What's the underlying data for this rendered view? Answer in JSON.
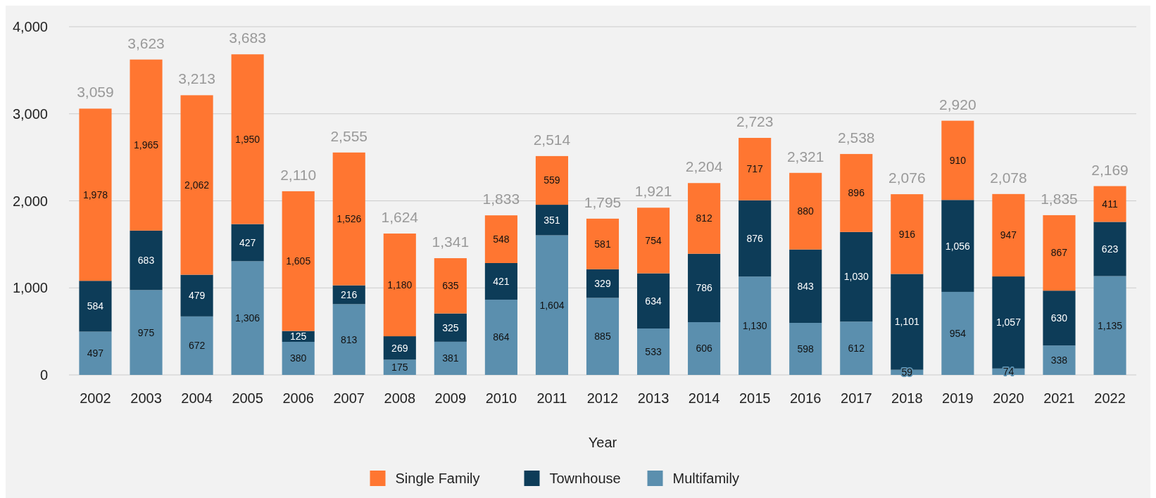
{
  "chart_data": {
    "type": "bar",
    "stacked": true,
    "xlabel": "Year",
    "categories": [
      "2002",
      "2003",
      "2004",
      "2005",
      "2006",
      "2007",
      "2008",
      "2009",
      "2010",
      "2011",
      "2012",
      "2013",
      "2014",
      "2015",
      "2016",
      "2017",
      "2018",
      "2019",
      "2020",
      "2021",
      "2022"
    ],
    "series": [
      {
        "name": "Multifamily",
        "color": "#5b8fae",
        "values": [
          497,
          975,
          672,
          1306,
          380,
          813,
          175,
          381,
          864,
          1604,
          885,
          533,
          606,
          1130,
          598,
          612,
          59,
          954,
          74,
          338,
          1135
        ],
        "value_labels": [
          "497",
          "975",
          "672",
          "1,306",
          "380",
          "813",
          "175",
          "381",
          "864",
          "1,604",
          "885",
          "533",
          "606",
          "1,130",
          "598",
          "612",
          "59",
          "954",
          "74",
          "338",
          "1,135"
        ]
      },
      {
        "name": "Townhouse",
        "color": "#0d3c58",
        "values": [
          584,
          683,
          479,
          427,
          125,
          216,
          269,
          325,
          421,
          351,
          329,
          634,
          786,
          876,
          843,
          1030,
          1101,
          1056,
          1057,
          630,
          623
        ],
        "value_labels": [
          "584",
          "683",
          "479",
          "427",
          "125",
          "216",
          "269",
          "325",
          "421",
          "351",
          "329",
          "634",
          "786",
          "876",
          "843",
          "1,030",
          "1,101",
          "1,056",
          "1,057",
          "630",
          "623"
        ]
      },
      {
        "name": "Single Family",
        "color": "#ff7631",
        "values": [
          1978,
          1965,
          2062,
          1950,
          1605,
          1526,
          1180,
          635,
          548,
          559,
          581,
          754,
          812,
          717,
          880,
          896,
          916,
          910,
          947,
          867,
          411
        ],
        "value_labels": [
          "1,978",
          "1,965",
          "2,062",
          "1,950",
          "1,605",
          "1,526",
          "1,180",
          "635",
          "548",
          "559",
          "581",
          "754",
          "812",
          "717",
          "880",
          "896",
          "916",
          "910",
          "947",
          "867",
          "411"
        ]
      }
    ],
    "totals": [
      "3,059",
      "3,623",
      "3,213",
      "3,683",
      "2,110",
      "2,555",
      "1,624",
      "1,341",
      "1,833",
      "2,514",
      "1,795",
      "1,921",
      "2,204",
      "2,723",
      "2,321",
      "2,538",
      "2,076",
      "2,920",
      "2,078",
      "1,835",
      "2,169"
    ],
    "ylim": [
      0,
      4000
    ],
    "yticks": [
      {
        "value": 0,
        "label": "0"
      },
      {
        "value": 1000,
        "label": "1,000"
      },
      {
        "value": 2000,
        "label": "2,000"
      },
      {
        "value": 3000,
        "label": "3,000"
      },
      {
        "value": 4000,
        "label": "4,000"
      }
    ],
    "grid": "y",
    "legend": "bottom"
  }
}
